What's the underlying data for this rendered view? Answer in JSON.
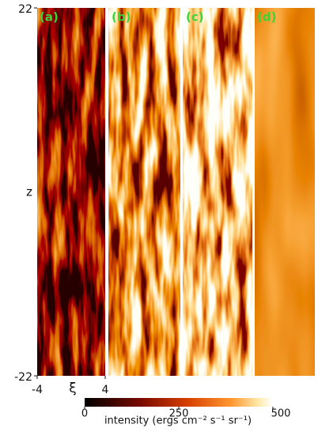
{
  "chart_data": {
    "type": "heatmap",
    "panels": [
      "(a)",
      "(b)",
      "(c)",
      "(d)"
    ],
    "x_label": "ξ",
    "y_label": "z",
    "xlim": [
      -4,
      4
    ],
    "ylim": [
      -22,
      22
    ],
    "xticks": [
      -4,
      4
    ],
    "yticks": [
      -22,
      22
    ],
    "colorbar": {
      "label": "intensity (ergs cm⁻² s⁻¹ sr⁻¹)",
      "lim": [
        0,
        500
      ],
      "ticks": [
        0,
        250,
        500
      ]
    }
  }
}
